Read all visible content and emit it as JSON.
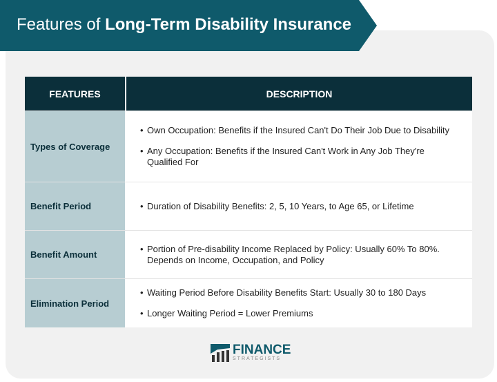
{
  "title": {
    "prefix": "Features of ",
    "bold": "Long-Term Disability Insurance"
  },
  "colors": {
    "banner": "#0f5a6b",
    "header": "#0b2f3a",
    "feature_cell": "#b7cdd2"
  },
  "table": {
    "headers": [
      "FEATURES",
      "DESCRIPTION"
    ],
    "rows": [
      {
        "feature": "Types of Coverage",
        "items": [
          "Own Occupation: Benefits if the Insured Can't Do Their Job Due to Disability",
          "Any Occupation: Benefits if the Insured Can't Work in Any Job They're Qualified For"
        ]
      },
      {
        "feature": "Benefit Period",
        "items": [
          "Duration of Disability Benefits: 2, 5, 10 Years, to Age 65, or Lifetime"
        ]
      },
      {
        "feature": "Benefit Amount",
        "items": [
          "Portion of Pre-disability Income Replaced by Policy: Usually 60% To 80%. Depends on Income, Occupation, and Policy"
        ]
      },
      {
        "feature": "Elimination Period",
        "items": [
          "Waiting Period Before Disability Benefits Start: Usually 30 to 180 Days",
          "Longer Waiting Period = Lower Premiums"
        ]
      }
    ]
  },
  "logo": {
    "name": "FINANCE",
    "sub": "STRATEGISTS",
    "icon": "chart-bars-logo"
  }
}
